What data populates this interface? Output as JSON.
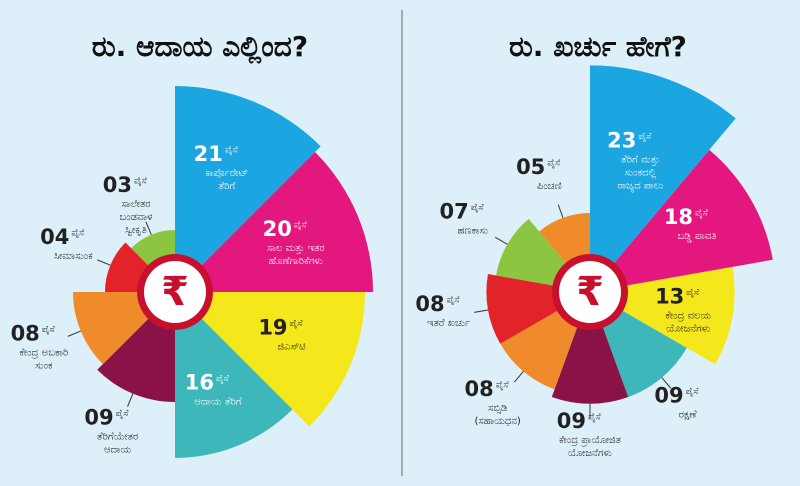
{
  "chart_data": [
    {
      "type": "rose",
      "title": "ರು. ಆದಾಯ ಎಲ್ಲಿಂದ?",
      "unit_label": "ಪೈಸೆ",
      "center_symbol": "₹",
      "categories": [
        [
          "ಕಾರ್ಪೊರೇಟ್",
          "ತೆರಿಗೆ"
        ],
        [
          "ಸಾಲ ಮತ್ತು ಇತರ",
          "ಹೊಣೆಗಾರಿಕೆಗಳು"
        ],
        [
          "ಜಿಎಸ್‌ಟಿ"
        ],
        [
          "ಆದಾಯ ತೆರಿಗೆ"
        ],
        [
          "ತೆರಿಗೆಯೇತರ",
          "ಆದಾಯ"
        ],
        [
          "ಕೇಂದ್ರ ಅಬಕಾರಿ",
          "ಸುಂಕ"
        ],
        [
          "ಸೀಮಾಸುಂಕ"
        ],
        [
          "ಸಾಲೇತರ",
          "ಬಂಡವಾಳ",
          "ಸ್ವೀಕೃತಿ"
        ]
      ],
      "values": [
        21,
        20,
        19,
        16,
        9,
        8,
        4,
        3
      ],
      "value_labels": [
        "21",
        "20",
        "19",
        "16",
        "09",
        "08",
        "04",
        "03"
      ],
      "colors": [
        "#1ba6e2",
        "#e4177f",
        "#f4e71c",
        "#3db7b9",
        "#8b1247",
        "#f08b2b",
        "#e2232a",
        "#8cc640"
      ]
    },
    {
      "type": "rose",
      "title": "ರು. ಖರ್ಚು ಹೇಗೆ?",
      "unit_label": "ಪೈಸೆ",
      "center_symbol": "₹",
      "categories": [
        [
          "ತೆರಿಗೆ ಮತ್ತು",
          "ಸುಂಕದಲ್ಲಿ",
          "ರಾಜ್ಯದ ಪಾಲು"
        ],
        [
          "ಬಡ್ಡಿ ಪಾವತಿ"
        ],
        [
          "ಕೇಂದ್ರ ವಲಯ",
          "ಯೋಜನೆಗಳು"
        ],
        [
          "ರಕ್ಷಣೆ"
        ],
        [
          "ಕೇಂದ್ರ ಪ್ರಾಯೋಜಿತ",
          "ಯೋಜನೆಗಳು"
        ],
        [
          "ಸಬ್ಸಿಡಿ",
          "(ಸಹಾಯಧನ)"
        ],
        [
          "ಇತರೆ ಖರ್ಚು"
        ],
        [
          "ಹಣಕಾಸು"
        ],
        [
          "ಪಿಂಚಣಿ"
        ]
      ],
      "values": [
        23,
        18,
        13,
        9,
        9,
        8,
        8,
        7,
        5
      ],
      "value_labels": [
        "23",
        "18",
        "13",
        "09",
        "09",
        "08",
        "08",
        "07",
        "05"
      ],
      "colors": [
        "#1ba6e2",
        "#e4177f",
        "#f4e71c",
        "#3db7b9",
        "#8b1247",
        "#f08b2b",
        "#e2232a",
        "#8cc640",
        "#f08b2b"
      ]
    }
  ]
}
